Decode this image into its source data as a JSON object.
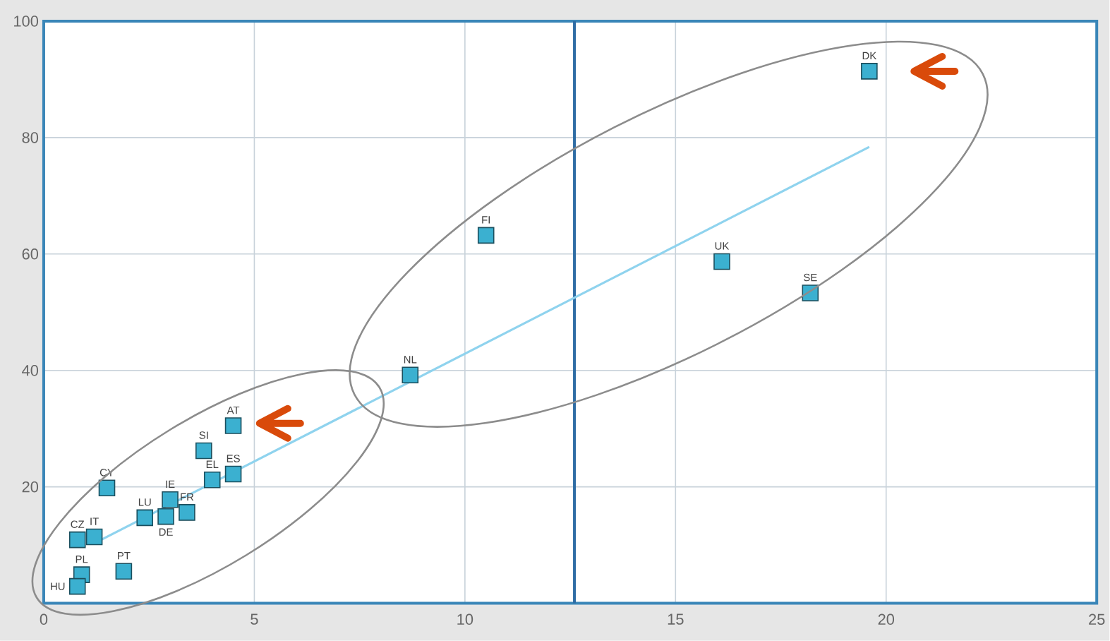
{
  "chart_data": {
    "type": "scatter",
    "grid": true,
    "xlim": [
      0,
      25
    ],
    "ylim": [
      0,
      100
    ],
    "xticks": [
      0,
      5,
      10,
      15,
      20,
      25
    ],
    "yticks": [
      20,
      40,
      60,
      80,
      100
    ],
    "series": [
      {
        "marker": "square",
        "color": "#3bb0d0",
        "x": [
          19.6,
          10.5,
          16.1,
          18.2,
          8.7,
          4.5,
          3.8,
          4.5,
          4.0,
          1.5,
          3.0,
          2.4,
          2.9,
          3.4,
          0.8,
          1.2,
          0.9,
          0.8,
          1.9
        ],
        "values": [
          91.4,
          63.2,
          58.7,
          53.3,
          39.2,
          30.5,
          26.2,
          22.2,
          21.2,
          19.8,
          17.8,
          14.7,
          14.9,
          15.6,
          10.9,
          11.4,
          4.9,
          2.9,
          5.5
        ]
      },
      {
        "type": "line",
        "color": "#8fd3ee",
        "x": [
          1.2,
          19.6
        ],
        "values": [
          10.3,
          78.4
        ]
      }
    ],
    "ref_lines": [
      {
        "axis": "x",
        "value": 12.6,
        "color": "#2e6ca4"
      }
    ],
    "annotations": [
      {
        "text": "DK",
        "x": 19.6,
        "y": 91.4
      },
      {
        "text": "FI",
        "x": 10.5,
        "y": 63.2
      },
      {
        "text": "UK",
        "x": 16.1,
        "y": 58.7
      },
      {
        "text": "SE",
        "x": 18.2,
        "y": 53.3
      },
      {
        "text": "NL",
        "x": 8.7,
        "y": 39.2
      },
      {
        "text": "AT",
        "x": 4.5,
        "y": 30.5
      },
      {
        "text": "SI",
        "x": 3.8,
        "y": 26.2
      },
      {
        "text": "ES",
        "x": 4.5,
        "y": 22.2
      },
      {
        "text": "EL",
        "x": 4.0,
        "y": 21.2
      },
      {
        "text": "CY",
        "x": 1.5,
        "y": 19.8
      },
      {
        "text": "IE",
        "x": 3.0,
        "y": 17.8
      },
      {
        "text": "LU",
        "x": 2.4,
        "y": 14.7
      },
      {
        "text": "DE",
        "x": 2.9,
        "y": 14.9
      },
      {
        "text": "FR",
        "x": 3.4,
        "y": 15.6
      },
      {
        "text": "CZ",
        "x": 0.8,
        "y": 10.9
      },
      {
        "text": "IT",
        "x": 1.2,
        "y": 11.4
      },
      {
        "text": "PL",
        "x": 0.9,
        "y": 4.9
      },
      {
        "text": "HU",
        "x": 0.8,
        "y": 2.9
      },
      {
        "text": "PT",
        "x": 1.9,
        "y": 5.5
      }
    ]
  }
}
